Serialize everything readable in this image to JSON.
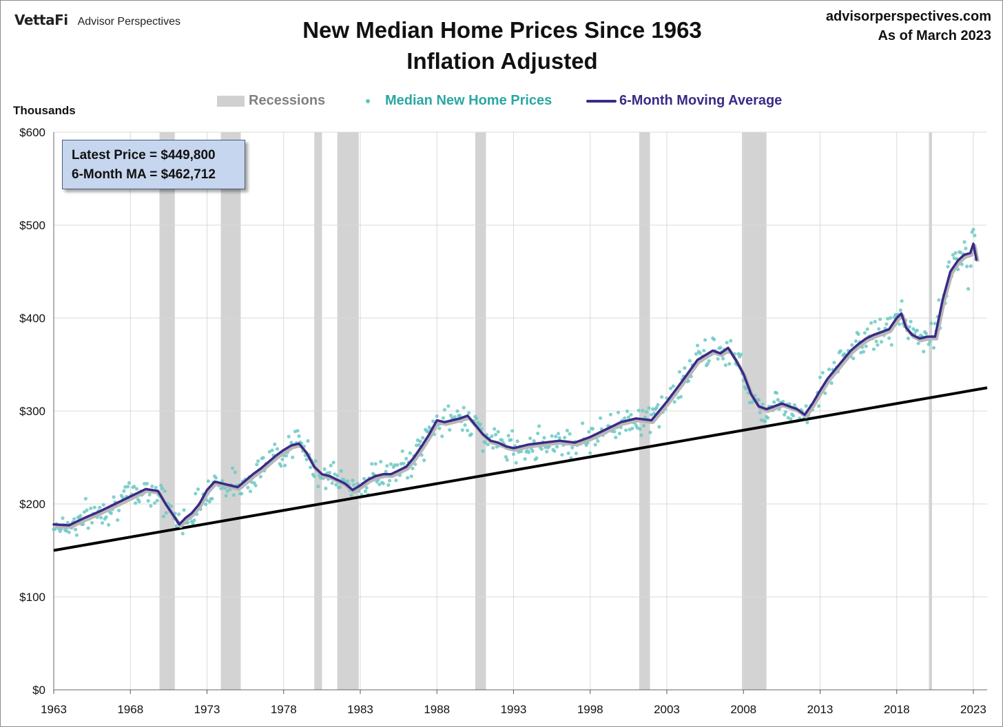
{
  "header": {
    "brand": "VettaFi",
    "brand_sub": "Advisor Perspectives",
    "title_line1": "New Median Home Prices Since 1963",
    "title_line2": "Inflation Adjusted",
    "source_site": "advisorperspectives.com",
    "source_date": "As of March 2023"
  },
  "chart_data": {
    "type": "scatter",
    "title": "New Median Home Prices Since 1963 Inflation Adjusted",
    "ylabel": "Thousands",
    "xlim": [
      1963,
      2023.9
    ],
    "ylim": [
      0,
      600
    ],
    "grid": true,
    "legend_placement": "top-center",
    "x_ticks": [
      "1963",
      "1968",
      "1973",
      "1978",
      "1983",
      "1988",
      "1993",
      "1998",
      "2003",
      "2008",
      "2013",
      "2018",
      "2023"
    ],
    "y_ticks": [
      "$0",
      "$100",
      "$200",
      "$300",
      "$400",
      "$500",
      "$600"
    ],
    "legend": {
      "recessions": "Recessions",
      "prices": "Median New Home Prices",
      "moving_average": "6-Month Moving Average"
    },
    "annotation": {
      "latest_price": "Latest Price = $449,800",
      "moving_average": "6-Month MA = $462,712"
    },
    "recessions": [
      [
        1969.9,
        1970.9
      ],
      [
        1973.9,
        1975.2
      ],
      [
        1980.0,
        1980.5
      ],
      [
        1981.5,
        1982.9
      ],
      [
        1990.5,
        1991.2
      ],
      [
        2001.2,
        2001.9
      ],
      [
        2007.9,
        2009.5
      ],
      [
        2020.1,
        2020.3
      ]
    ],
    "moving_average": {
      "x": [
        1963.0,
        1964.0,
        1965.0,
        1966.0,
        1967.0,
        1968.0,
        1969.0,
        1969.8,
        1970.3,
        1970.8,
        1971.2,
        1971.6,
        1972.0,
        1972.5,
        1973.0,
        1973.5,
        1974.0,
        1974.5,
        1975.0,
        1975.5,
        1976.0,
        1976.5,
        1977.0,
        1977.5,
        1978.0,
        1978.5,
        1979.0,
        1979.5,
        1980.0,
        1980.5,
        1981.0,
        1981.5,
        1982.0,
        1982.5,
        1983.0,
        1983.5,
        1984.0,
        1984.5,
        1985.0,
        1985.5,
        1986.0,
        1986.5,
        1987.0,
        1987.5,
        1988.0,
        1988.5,
        1989.0,
        1989.5,
        1990.0,
        1990.5,
        1991.0,
        1991.5,
        1992.0,
        1992.5,
        1993.0,
        1993.5,
        1994.0,
        1995.0,
        1996.0,
        1997.0,
        1998.0,
        1999.0,
        2000.0,
        2001.0,
        2002.0,
        2003.0,
        2004.0,
        2005.0,
        2006.0,
        2006.5,
        2007.0,
        2007.5,
        2008.0,
        2008.5,
        2009.0,
        2009.5,
        2010.0,
        2010.5,
        2011.0,
        2011.5,
        2012.0,
        2012.5,
        2013.0,
        2013.5,
        2014.0,
        2014.5,
        2015.0,
        2015.5,
        2016.0,
        2016.5,
        2017.0,
        2017.5,
        2018.0,
        2018.3,
        2018.6,
        2019.0,
        2019.5,
        2020.0,
        2020.5,
        2021.0,
        2021.5,
        2022.0,
        2022.4,
        2022.8,
        2023.0,
        2023.2
      ],
      "y": [
        178,
        177,
        185,
        192,
        200,
        208,
        216,
        214,
        200,
        188,
        178,
        185,
        190,
        200,
        215,
        224,
        222,
        220,
        218,
        225,
        232,
        238,
        245,
        252,
        258,
        263,
        265,
        255,
        240,
        232,
        230,
        226,
        222,
        215,
        220,
        226,
        230,
        232,
        232,
        236,
        240,
        250,
        262,
        275,
        290,
        288,
        290,
        292,
        295,
        285,
        275,
        268,
        266,
        262,
        260,
        262,
        264,
        266,
        268,
        266,
        272,
        280,
        288,
        292,
        290,
        310,
        332,
        355,
        365,
        362,
        368,
        355,
        340,
        318,
        305,
        302,
        305,
        308,
        305,
        302,
        296,
        308,
        322,
        335,
        345,
        355,
        365,
        372,
        378,
        382,
        385,
        388,
        400,
        405,
        390,
        382,
        378,
        380,
        380,
        420,
        450,
        462,
        468,
        470,
        480,
        463
      ]
    },
    "scatter_seed": 7,
    "scatter_noise": 8,
    "trendline": {
      "x": [
        1963.0,
        2023.9
      ],
      "y": [
        150,
        325
      ]
    }
  }
}
